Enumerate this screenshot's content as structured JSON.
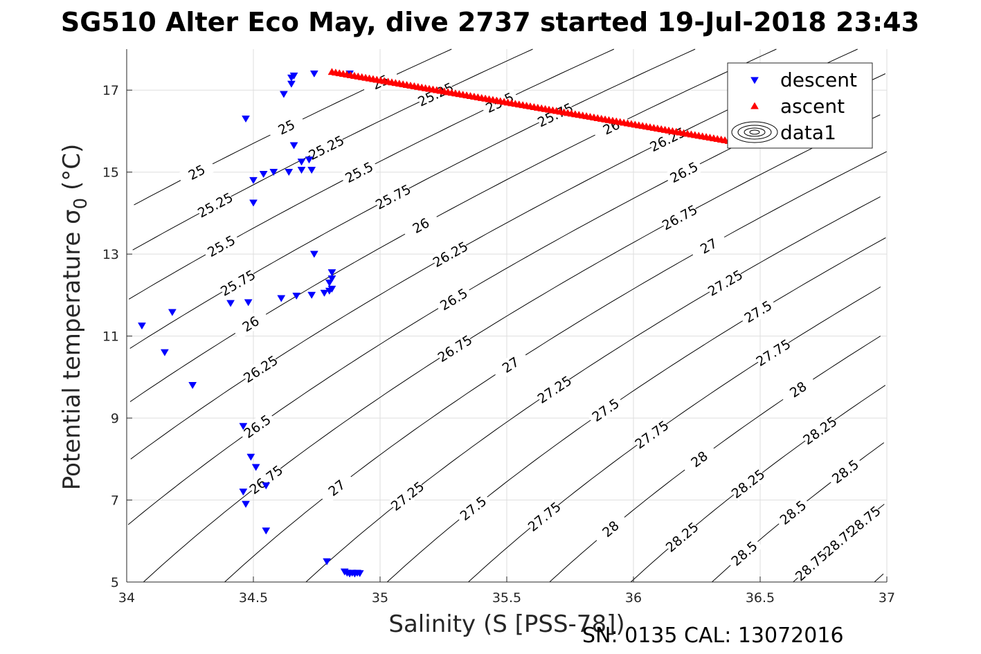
{
  "chart_data": {
    "type": "scatter",
    "title": "SG510 Alter Eco May, dive 2737 started 19-Jul-2018 23:43",
    "xlabel": "Salinity (S [PSS-78])",
    "ylabel": "Potential temperature σ",
    "ylabel_sub": "0",
    "ylabel_unit": " (°C)",
    "xlim": [
      34,
      37
    ],
    "ylim": [
      5,
      18
    ],
    "xticks": [
      34,
      34.5,
      35,
      35.5,
      36,
      36.5,
      37
    ],
    "xtick_labels": [
      "34",
      "34.5",
      "35",
      "35.5",
      "36",
      "36.5",
      "37"
    ],
    "yticks": [
      5,
      7,
      9,
      11,
      13,
      15,
      17
    ],
    "ytick_labels": [
      "5",
      "7",
      "9",
      "11",
      "13",
      "15",
      "17"
    ],
    "grid": true,
    "legend_position": "top-right",
    "series": [
      {
        "name": "descent",
        "marker": "triangle-down",
        "color": "#0000ff",
        "points": [
          [
            34.88,
            17.4
          ],
          [
            34.74,
            17.4
          ],
          [
            34.66,
            17.35
          ],
          [
            34.65,
            17.3
          ],
          [
            34.65,
            17.15
          ],
          [
            34.62,
            16.9
          ],
          [
            34.47,
            16.3
          ],
          [
            34.66,
            15.65
          ],
          [
            34.72,
            15.3
          ],
          [
            34.69,
            15.25
          ],
          [
            34.73,
            15.05
          ],
          [
            34.69,
            15.05
          ],
          [
            34.64,
            15.0
          ],
          [
            34.58,
            15.0
          ],
          [
            34.54,
            14.95
          ],
          [
            34.5,
            14.8
          ],
          [
            34.5,
            14.25
          ],
          [
            34.74,
            13.0
          ],
          [
            34.81,
            12.55
          ],
          [
            34.81,
            12.4
          ],
          [
            34.8,
            12.3
          ],
          [
            34.81,
            12.15
          ],
          [
            34.8,
            12.1
          ],
          [
            34.78,
            12.05
          ],
          [
            34.73,
            12.0
          ],
          [
            34.67,
            11.98
          ],
          [
            34.61,
            11.92
          ],
          [
            34.48,
            11.82
          ],
          [
            34.41,
            11.8
          ],
          [
            34.18,
            11.58
          ],
          [
            34.06,
            11.25
          ],
          [
            34.15,
            10.6
          ],
          [
            34.26,
            9.8
          ],
          [
            34.46,
            8.8
          ],
          [
            34.49,
            8.05
          ],
          [
            34.51,
            7.8
          ],
          [
            34.55,
            7.35
          ],
          [
            34.46,
            7.2
          ],
          [
            34.47,
            6.9
          ],
          [
            34.55,
            6.25
          ],
          [
            34.79,
            5.5
          ],
          [
            34.86,
            5.25
          ],
          [
            34.87,
            5.22
          ],
          [
            34.88,
            5.2
          ],
          [
            34.89,
            5.22
          ],
          [
            34.9,
            5.2
          ],
          [
            34.91,
            5.22
          ],
          [
            34.92,
            5.21
          ]
        ]
      },
      {
        "name": "ascent",
        "marker": "triangle-up",
        "color": "#ff0000",
        "from": [
          34.81,
          17.45
        ],
        "to": [
          36.42,
          15.72
        ],
        "count": 110
      },
      {
        "name": "data1",
        "marker": "contour",
        "color": "#000000",
        "levels": [
          25,
          25.25,
          25.5,
          25.75,
          26,
          26.25,
          26.5,
          26.75,
          27,
          27.25,
          27.5,
          27.75,
          28,
          28.25,
          28.5,
          28.75,
          29
        ]
      }
    ],
    "footer": "SN: 0135  CAL: 13072016"
  }
}
